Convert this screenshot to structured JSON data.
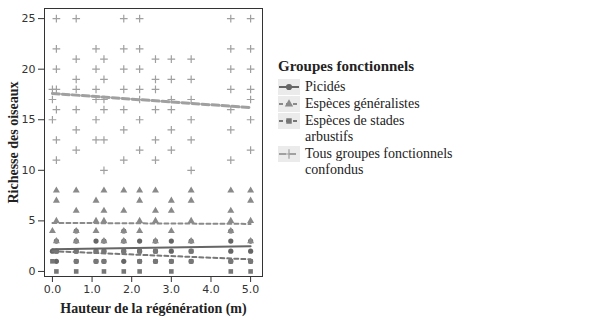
{
  "chart_data": {
    "type": "scatter",
    "x_label": "Hauteur de la régénération (m)",
    "y_label": "Richesse des oiseaux",
    "legend_title": "Groupes fonctionnels",
    "legend": "right",
    "grid": false,
    "xlim": [
      -0.2,
      5.3
    ],
    "ylim": [
      -0.5,
      26
    ],
    "xticks": [
      0,
      1,
      2,
      3,
      4,
      5
    ],
    "yticks": [
      0,
      5,
      10,
      15,
      20,
      25
    ],
    "series": [
      {
        "name": "Picidés",
        "color": "#666666",
        "marker": "circle",
        "line_style": "solid",
        "x": [
          0,
          0.1,
          0.1,
          0.1,
          0.6,
          0.6,
          0.6,
          0.6,
          1.1,
          1.1,
          1.1,
          1.3,
          1.3,
          1.3,
          1.8,
          1.8,
          1.8,
          1.8,
          2.2,
          2.2,
          2.2,
          2.6,
          2.6,
          2.6,
          3.0,
          3.0,
          3.0,
          3.5,
          3.5,
          3.5,
          4.5,
          4.5,
          4.5,
          4.5,
          5.0,
          5.0,
          5.0
        ],
        "values": [
          2,
          1,
          2,
          3,
          1,
          2,
          3,
          4,
          1,
          2,
          3,
          1,
          2,
          3,
          1,
          2,
          3,
          4,
          1,
          2,
          3,
          1,
          2,
          3,
          1,
          2,
          3,
          1,
          2,
          3,
          1,
          2,
          3,
          4,
          1,
          2,
          3
        ],
        "fit_x": [
          0,
          5
        ],
        "fit": [
          2.2,
          2.5
        ]
      },
      {
        "name": "Espèces généralistes",
        "color": "#8a8a8a",
        "marker": "triangle",
        "line_style": "dashed",
        "x": [
          0,
          0.1,
          0.1,
          0.1,
          0.1,
          0.6,
          0.6,
          0.6,
          0.6,
          1.1,
          1.1,
          1.1,
          1.3,
          1.3,
          1.3,
          1.3,
          1.8,
          1.8,
          1.8,
          1.8,
          2.2,
          2.2,
          2.2,
          2.2,
          2.6,
          2.6,
          2.6,
          2.6,
          3.0,
          3.0,
          3.0,
          3.5,
          3.5,
          3.5,
          3.5,
          4.5,
          4.5,
          4.5,
          4.5,
          5.0,
          5.0,
          5.0,
          5.0
        ],
        "values": [
          4,
          3,
          5,
          7,
          8,
          3,
          4,
          6,
          8,
          4,
          5,
          7,
          3,
          5,
          6,
          8,
          3,
          4,
          6,
          8,
          4,
          5,
          7,
          8,
          3,
          5,
          6,
          8,
          4,
          6,
          7,
          3,
          5,
          7,
          8,
          4,
          5,
          6,
          8,
          3,
          5,
          7,
          8
        ],
        "fit_x": [
          0,
          5
        ],
        "fit": [
          4.8,
          4.7
        ]
      },
      {
        "name": "Espèces de stades arbustifs",
        "color": "#777777",
        "marker": "square",
        "line_style": "dashed",
        "x": [
          0,
          0.1,
          0.1,
          0.6,
          0.6,
          0.6,
          1.1,
          1.1,
          1.3,
          1.3,
          1.3,
          1.8,
          1.8,
          2.2,
          2.2,
          2.2,
          2.6,
          2.6,
          3.0,
          3.0,
          3.5,
          3.5,
          4.5,
          4.5,
          5.0,
          5.0
        ],
        "values": [
          1,
          0,
          2,
          0,
          1,
          2,
          1,
          2,
          0,
          1,
          2,
          0,
          2,
          0,
          1,
          2,
          1,
          2,
          0,
          1,
          1,
          2,
          0,
          1,
          0,
          1
        ],
        "fit_x": [
          0,
          5
        ],
        "fit": [
          2.0,
          1.2
        ]
      },
      {
        "name": "Tous groupes fonctionnels confondus",
        "color": "#a0a0a0",
        "marker": "plus",
        "line_style": "longdash",
        "x": [
          0,
          0,
          0,
          0.1,
          0.1,
          0.1,
          0.1,
          0.1,
          0.1,
          0.1,
          0.6,
          0.6,
          0.6,
          0.6,
          0.6,
          0.6,
          0.6,
          1.1,
          1.1,
          1.1,
          1.1,
          1.1,
          1.1,
          1.3,
          1.3,
          1.3,
          1.3,
          1.3,
          1.3,
          1.8,
          1.8,
          1.8,
          1.8,
          1.8,
          1.8,
          1.8,
          2.2,
          2.2,
          2.2,
          2.2,
          2.2,
          2.2,
          2.2,
          2.6,
          2.6,
          2.6,
          2.6,
          2.6,
          2.6,
          3.0,
          3.0,
          3.0,
          3.0,
          3.0,
          3.0,
          3.5,
          3.5,
          3.5,
          3.5,
          3.5,
          3.5,
          4.5,
          4.5,
          4.5,
          4.5,
          4.5,
          4.5,
          4.5,
          5.0,
          5.0,
          5.0,
          5.0,
          5.0,
          5.0,
          5.0
        ],
        "values": [
          15,
          17,
          18,
          11,
          13,
          16,
          18,
          20,
          22,
          25,
          12,
          14,
          16,
          18,
          19,
          21,
          25,
          13,
          15,
          17,
          18,
          20,
          22,
          10,
          13,
          16,
          17,
          19,
          21,
          11,
          14,
          16,
          18,
          20,
          22,
          25,
          12,
          15,
          17,
          18,
          20,
          22,
          25,
          11,
          13,
          16,
          18,
          19,
          21,
          12,
          14,
          16,
          17,
          19,
          21,
          10,
          13,
          15,
          17,
          19,
          21,
          11,
          14,
          16,
          18,
          20,
          22,
          25,
          12,
          15,
          17,
          18,
          20,
          22,
          25
        ],
        "fit_x": [
          0,
          5
        ],
        "fit": [
          17.6,
          16.2
        ]
      }
    ]
  }
}
